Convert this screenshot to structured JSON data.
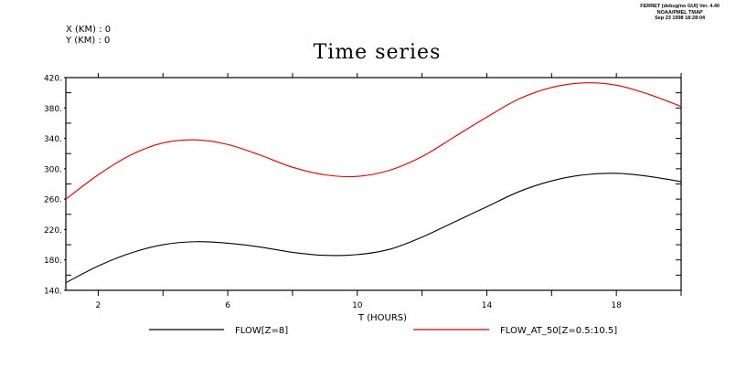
{
  "header": {
    "line1": "FERRET (debug/no GUI) Ver. 4.40",
    "line2": "NOAA/PMEL TMAP",
    "line3": "Sep 23 1998 18:28:04"
  },
  "coords": {
    "x": "X (KM) : 0",
    "y": "Y (KM) : 0"
  },
  "chart_data": {
    "type": "line",
    "title": "Time series",
    "xlabel": "T (HOURS)",
    "ylabel": "",
    "xlim": [
      1,
      20
    ],
    "ylim": [
      140,
      420
    ],
    "x_ticks": [
      2,
      6,
      10,
      14,
      18
    ],
    "x_tick_labels": [
      "2",
      "6",
      "10",
      "14",
      "18"
    ],
    "y_ticks": [
      140,
      180,
      220,
      260,
      300,
      340,
      380,
      420
    ],
    "y_tick_labels": [
      "140.",
      "180.",
      "220.",
      "260.",
      "300.",
      "340.",
      "380.",
      "420."
    ],
    "grid": false,
    "legend_position": "bottom",
    "x": [
      1,
      2,
      3,
      4,
      5,
      6,
      7,
      8,
      9,
      10,
      11,
      12,
      13,
      14,
      15,
      16,
      17,
      18,
      19,
      20
    ],
    "series": [
      {
        "name": "FLOW[Z=8]",
        "color": "#000000",
        "values": [
          150,
          172,
          189,
          200,
          204,
          202,
          197,
          190,
          186,
          187,
          194,
          210,
          230,
          250,
          270,
          284,
          292,
          294,
          290,
          283
        ]
      },
      {
        "name": "FLOW_AT_50[Z=0.5:10.5]",
        "color": "#e00000",
        "values": [
          260,
          292,
          318,
          334,
          338,
          332,
          318,
          302,
          292,
          290,
          298,
          316,
          342,
          368,
          392,
          407,
          413,
          410,
          398,
          382
        ]
      }
    ]
  }
}
